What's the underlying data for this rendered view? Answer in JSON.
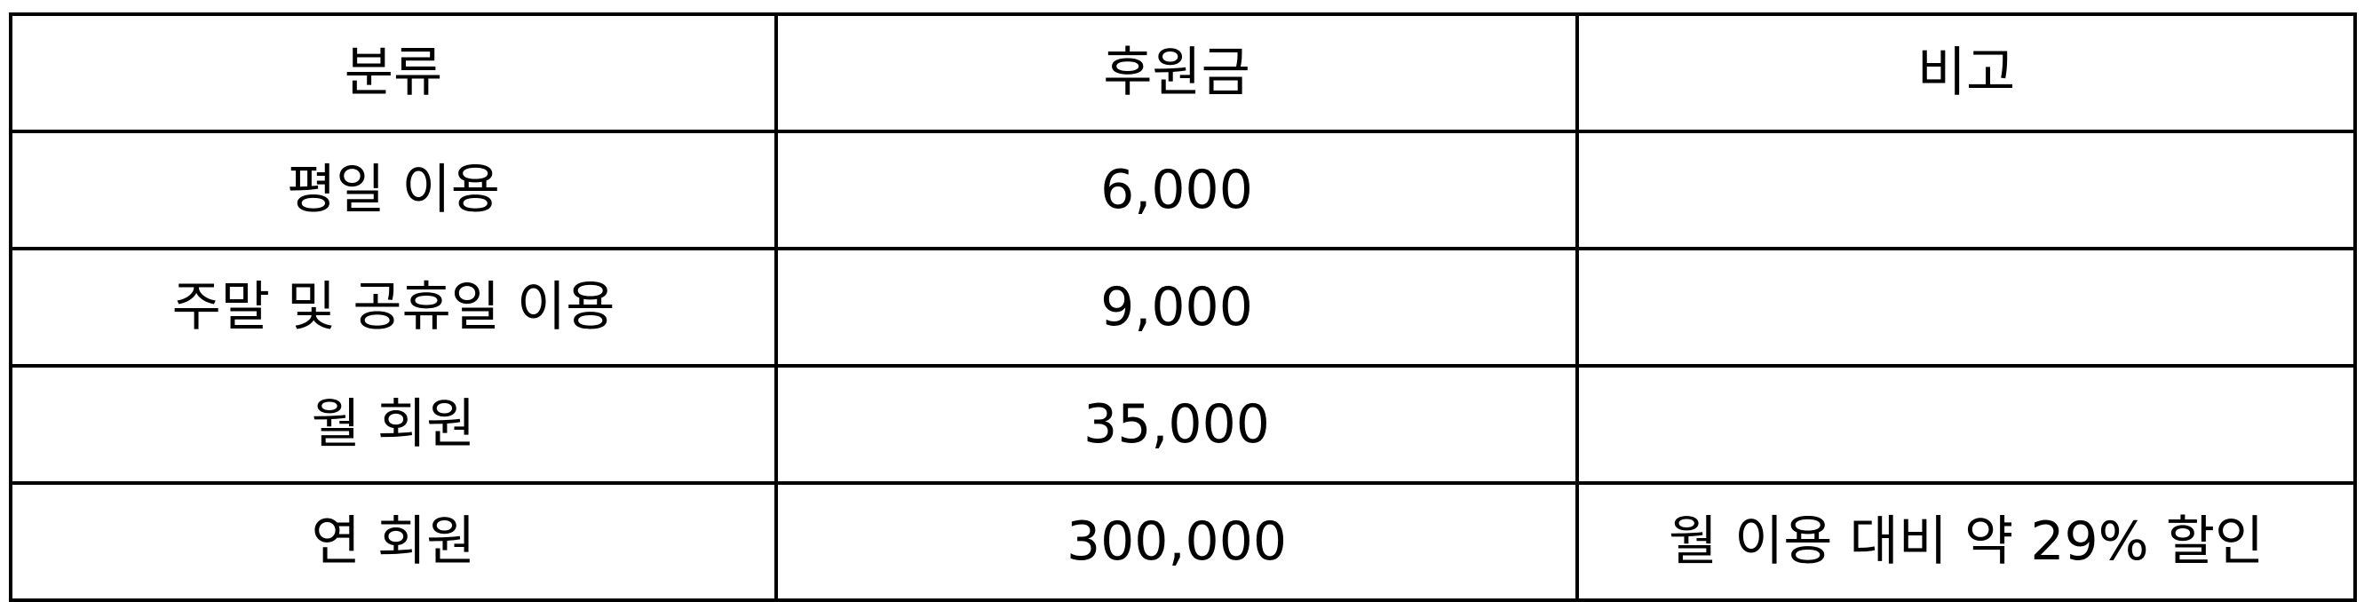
{
  "table": {
    "headers": [
      "분류",
      "후원금",
      "비고"
    ],
    "rows": [
      [
        "평일 이용",
        "6,000",
        ""
      ],
      [
        "주말 및 공휴일 이용",
        "9,000",
        ""
      ],
      [
        "월 회원",
        "35,000",
        ""
      ],
      [
        "연 회원",
        "300,000",
        "월 이용 대비 약 29% 할인"
      ]
    ]
  }
}
